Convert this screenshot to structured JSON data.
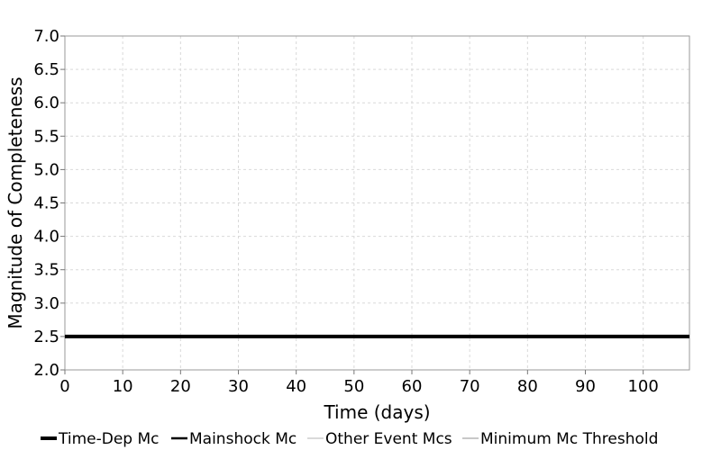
{
  "chart_data": {
    "type": "line",
    "title": "",
    "xlabel": "Time (days)",
    "ylabel": "Magnitude of Completeness",
    "xlim": [
      0,
      108
    ],
    "ylim": [
      2.0,
      7.0
    ],
    "x_ticks": [
      0,
      10,
      20,
      30,
      40,
      50,
      60,
      70,
      80,
      90,
      100
    ],
    "y_ticks": [
      2.0,
      2.5,
      3.0,
      3.5,
      4.0,
      4.5,
      5.0,
      5.5,
      6.0,
      6.5,
      7.0
    ],
    "x_tick_labels": [
      "0",
      "10",
      "20",
      "30",
      "40",
      "50",
      "60",
      "70",
      "80",
      "90",
      "100"
    ],
    "y_tick_labels": [
      "2.0",
      "2.5",
      "3.0",
      "3.5",
      "4.0",
      "4.5",
      "5.0",
      "5.5",
      "6.0",
      "6.5",
      "7.0"
    ],
    "grid": true,
    "legend_position": "bottom",
    "series": [
      {
        "name": "Time-Dep Mc",
        "color": "#000000",
        "x": [
          0,
          108
        ],
        "y": [
          2.5,
          2.5
        ]
      },
      {
        "name": "Mainshock Mc",
        "color": "#000000",
        "x": [],
        "y": []
      },
      {
        "name": "Other Event Mcs",
        "color": "#b4b4b4",
        "x": [],
        "y": []
      },
      {
        "name": "Minimum Mc Threshold",
        "color": "#c8c8c8",
        "x": [],
        "y": []
      }
    ]
  }
}
